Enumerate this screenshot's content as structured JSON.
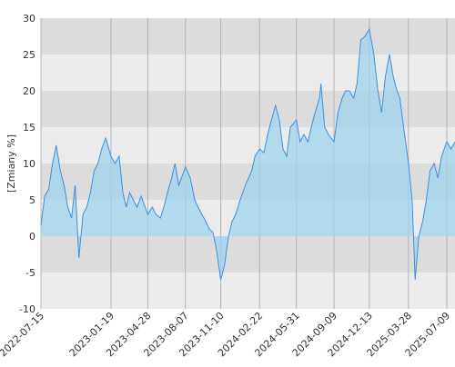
{
  "chart_data": {
    "type": "area",
    "ylabel": "[Zmiany %]",
    "xlabel": "",
    "title": "",
    "ylim": [
      -10,
      30
    ],
    "y_ticks": [
      "-10",
      "-5",
      "0",
      "5",
      "10",
      "15",
      "20",
      "25",
      "30"
    ],
    "x_range": [
      "2022-07-15",
      "2025-07-31"
    ],
    "x_ticks": [
      "2022-07-15",
      "2023-01-19",
      "2023-04-28",
      "2023-08-07",
      "2023-11-10",
      "2024-02-22",
      "2024-05-31",
      "2024-09-09",
      "2024-12-13",
      "2025-03-28",
      "2025-07-09"
    ],
    "grid": true,
    "series": [
      {
        "x": [
          "2022-07-15",
          "2022-07-25",
          "2022-08-05",
          "2022-08-15",
          "2022-08-25",
          "2022-09-05",
          "2022-09-15",
          "2022-09-25",
          "2022-10-05",
          "2022-10-15",
          "2022-10-25",
          "2022-11-05",
          "2022-11-15",
          "2022-11-25",
          "2022-12-05",
          "2022-12-15",
          "2022-12-25",
          "2023-01-05",
          "2023-01-19",
          "2023-01-30",
          "2023-02-10",
          "2023-02-20",
          "2023-03-01",
          "2023-03-10",
          "2023-03-20",
          "2023-03-30",
          "2023-04-10",
          "2023-04-28",
          "2023-05-10",
          "2023-05-20",
          "2023-06-01",
          "2023-06-10",
          "2023-06-20",
          "2023-07-01",
          "2023-07-10",
          "2023-07-20",
          "2023-08-07",
          "2023-08-20",
          "2023-09-01",
          "2023-09-10",
          "2023-09-20",
          "2023-10-01",
          "2023-10-10",
          "2023-10-20",
          "2023-10-30",
          "2023-11-10",
          "2023-11-20",
          "2023-12-01",
          "2023-12-10",
          "2023-12-20",
          "2024-01-01",
          "2024-01-15",
          "2024-02-01",
          "2024-02-10",
          "2024-02-22",
          "2024-03-05",
          "2024-03-15",
          "2024-03-25",
          "2024-04-05",
          "2024-04-15",
          "2024-04-25",
          "2024-05-05",
          "2024-05-15",
          "2024-05-31",
          "2024-06-10",
          "2024-06-20",
          "2024-07-01",
          "2024-07-10",
          "2024-07-20",
          "2024-08-01",
          "2024-08-05",
          "2024-08-15",
          "2024-08-25",
          "2024-09-09",
          "2024-09-20",
          "2024-10-01",
          "2024-10-10",
          "2024-10-20",
          "2024-11-01",
          "2024-11-10",
          "2024-11-20",
          "2024-12-01",
          "2024-12-13",
          "2024-12-25",
          "2025-01-05",
          "2025-01-15",
          "2025-01-25",
          "2025-02-05",
          "2025-02-15",
          "2025-02-25",
          "2025-03-05",
          "2025-03-15",
          "2025-03-28",
          "2025-04-07",
          "2025-04-15",
          "2025-04-25",
          "2025-05-05",
          "2025-05-15",
          "2025-05-25",
          "2025-06-05",
          "2025-06-15",
          "2025-06-25",
          "2025-07-09",
          "2025-07-20",
          "2025-07-31"
        ],
        "values": [
          1.5,
          5.5,
          6.5,
          10,
          12.5,
          9,
          7,
          4,
          2.5,
          7,
          -3,
          3,
          4,
          6,
          9,
          10,
          12,
          13.5,
          11,
          10,
          11,
          6,
          4,
          6,
          5,
          4,
          5.5,
          3,
          4,
          3,
          2.5,
          4,
          6,
          8,
          10,
          7,
          9.5,
          8,
          5,
          4,
          3,
          2,
          1,
          0.5,
          -2,
          -6,
          -4,
          0,
          2,
          3,
          5,
          7,
          9,
          11,
          12,
          11.5,
          14,
          16,
          18,
          16,
          12,
          11,
          15,
          16,
          13,
          14,
          13,
          15,
          17,
          19,
          21,
          15,
          14,
          13,
          17,
          19,
          20,
          20,
          19,
          21,
          27,
          27.5,
          28.5,
          25,
          20,
          17,
          22,
          25,
          22,
          20,
          19,
          15,
          10,
          5,
          -6,
          0,
          2,
          5,
          9,
          10,
          8,
          11,
          13,
          12,
          13
        ]
      }
    ]
  }
}
